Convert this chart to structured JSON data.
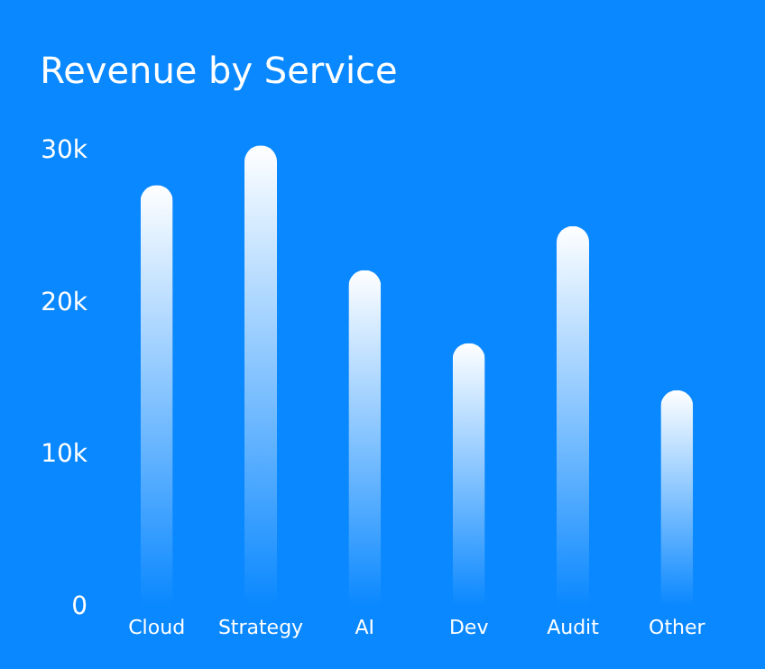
{
  "chart_data": {
    "type": "bar",
    "title": "Revenue by Service",
    "categories": [
      "Cloud",
      "Strategy",
      "AI",
      "Dev",
      "Audit",
      "Other"
    ],
    "values": [
      27700,
      30300,
      22100,
      17300,
      25000,
      14200
    ],
    "color": "#ffffff",
    "ylim": [
      0,
      30500
    ],
    "yticks": [
      {
        "value": 0,
        "label": "0"
      },
      {
        "value": 10000,
        "label": "10k"
      },
      {
        "value": 20000,
        "label": "20k"
      },
      {
        "value": 30000,
        "label": "30k"
      }
    ],
    "grid": false
  }
}
